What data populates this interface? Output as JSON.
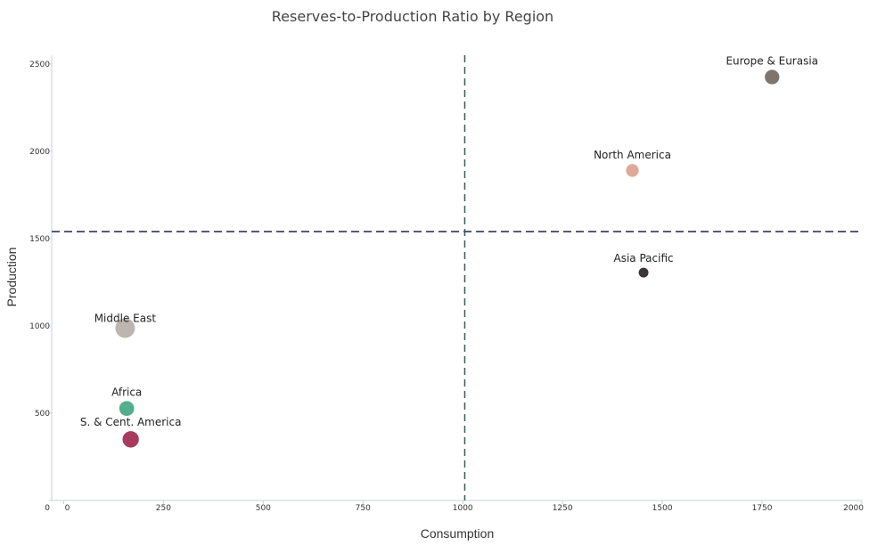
{
  "chart_data": {
    "type": "scatter",
    "variant": "bubble",
    "title": "Reserves-to-Production Ratio by Region",
    "xlabel": "Consumption",
    "ylabel": "Production",
    "xlim": [
      -30,
      2000
    ],
    "ylim": [
      0,
      2550
    ],
    "x_ticks": [
      "0",
      "250",
      "500",
      "750",
      "1000",
      "1250",
      "1500",
      "1750",
      "2000"
    ],
    "y_ticks": [
      "0",
      "500",
      "1000",
      "1500",
      "2000",
      "2500"
    ],
    "reference_lines": {
      "x": 1005,
      "y": 1540
    },
    "grid": false,
    "points": [
      {
        "label": "Europe & Eurasia",
        "x": 1775,
        "y": 2425,
        "size": 2.2,
        "color": "#7e7470"
      },
      {
        "label": "North America",
        "x": 1425,
        "y": 1890,
        "size": 1.7,
        "color": "#e0a89a"
      },
      {
        "label": "Asia Pacific",
        "x": 1453,
        "y": 1305,
        "size": 1.0,
        "color": "#3b3737"
      },
      {
        "label": "Middle East",
        "x": 154,
        "y": 987,
        "size": 4.0,
        "color": "#bdb6b0"
      },
      {
        "label": "Africa",
        "x": 158,
        "y": 527,
        "size": 2.3,
        "color": "#52ae8d"
      },
      {
        "label": "S. & Cent. America",
        "x": 168,
        "y": 350,
        "size": 2.8,
        "color": "#a83a5e"
      }
    ]
  }
}
